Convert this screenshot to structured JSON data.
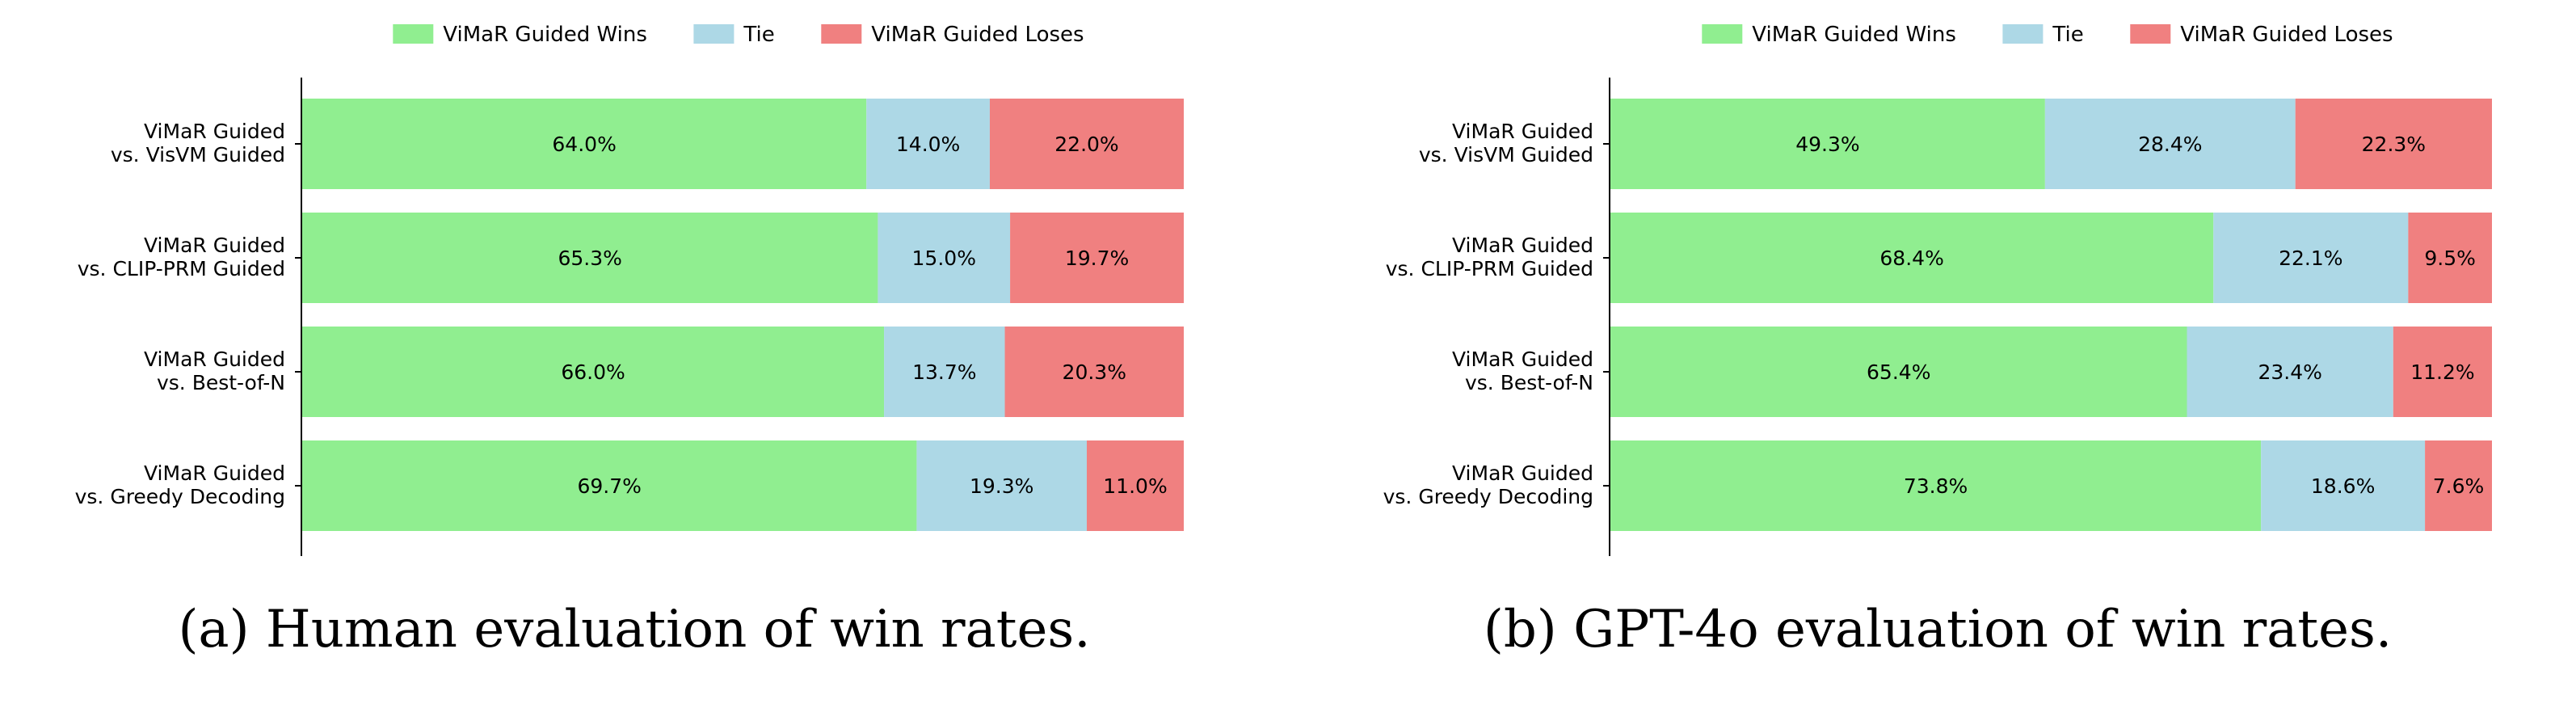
{
  "chart_data": [
    {
      "type": "bar",
      "orientation": "horizontal",
      "stacked": true,
      "title": "",
      "xlabel": "",
      "ylabel": "",
      "xlim": [
        0,
        100
      ],
      "grid": false,
      "legend_position": "top-center",
      "caption": "(a) Human evaluation of win rates.",
      "categories": [
        [
          "ViMaR Guided",
          "vs. VisVM Guided"
        ],
        [
          "ViMaR Guided",
          "vs. CLIP-PRM Guided"
        ],
        [
          "ViMaR Guided",
          "vs. Best-of-N"
        ],
        [
          "ViMaR Guided",
          "vs. Greedy Decoding"
        ]
      ],
      "series": [
        {
          "name": "ViMaR Guided Wins",
          "color": "#90ee90",
          "values": [
            64.0,
            65.3,
            66.0,
            69.7
          ],
          "labels": [
            "64.0%",
            "65.3%",
            "66.0%",
            "69.7%"
          ]
        },
        {
          "name": "Tie",
          "color": "#add8e6",
          "values": [
            14.0,
            15.0,
            13.7,
            19.3
          ],
          "labels": [
            "14.0%",
            "15.0%",
            "13.7%",
            "19.3%"
          ]
        },
        {
          "name": "ViMaR Guided Loses",
          "color": "#f08080",
          "values": [
            22.0,
            19.7,
            20.3,
            11.0
          ],
          "labels": [
            "22.0%",
            "19.7%",
            "20.3%",
            "11.0%"
          ]
        }
      ]
    },
    {
      "type": "bar",
      "orientation": "horizontal",
      "stacked": true,
      "title": "",
      "xlabel": "",
      "ylabel": "",
      "xlim": [
        0,
        100
      ],
      "grid": false,
      "legend_position": "top-center",
      "caption": "(b) GPT-4o evaluation of win rates.",
      "categories": [
        [
          "ViMaR Guided",
          "vs. VisVM Guided"
        ],
        [
          "ViMaR Guided",
          "vs. CLIP-PRM Guided"
        ],
        [
          "ViMaR Guided",
          "vs. Best-of-N"
        ],
        [
          "ViMaR Guided",
          "vs. Greedy Decoding"
        ]
      ],
      "series": [
        {
          "name": "ViMaR Guided Wins",
          "color": "#90ee90",
          "values": [
            49.3,
            68.4,
            65.4,
            73.8
          ],
          "labels": [
            "49.3%",
            "68.4%",
            "65.4%",
            "73.8%"
          ]
        },
        {
          "name": "Tie",
          "color": "#add8e6",
          "values": [
            28.4,
            22.1,
            23.4,
            18.6
          ],
          "labels": [
            "28.4%",
            "22.1%",
            "23.4%",
            "18.6%"
          ]
        },
        {
          "name": "ViMaR Guided Loses",
          "color": "#f08080",
          "values": [
            22.3,
            9.5,
            11.2,
            7.6
          ],
          "labels": [
            "22.3%",
            "9.5%",
            "11.2%",
            "7.6%"
          ]
        }
      ]
    }
  ]
}
